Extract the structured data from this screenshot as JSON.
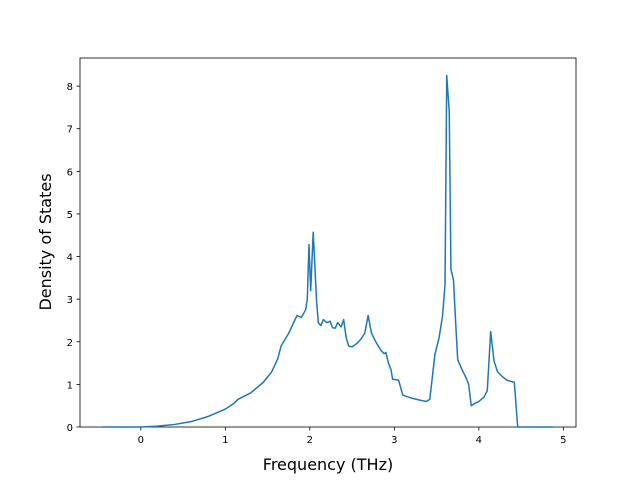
{
  "chart_data": {
    "type": "line",
    "xlabel": "Frequency (THz)",
    "ylabel": "Density of States",
    "xlim": [
      -0.72,
      5.15
    ],
    "ylim": [
      0,
      8.66
    ],
    "xticks": [
      0,
      1,
      2,
      3,
      4,
      5
    ],
    "yticks": [
      0,
      1,
      2,
      3,
      4,
      5,
      6,
      7,
      8
    ],
    "grid": false,
    "series": [
      {
        "name": "DOS",
        "color": "#1f77b4",
        "x": [
          -0.45,
          0,
          0.2,
          0.4,
          0.6,
          0.8,
          1.0,
          1.1,
          1.15,
          1.3,
          1.45,
          1.55,
          1.62,
          1.66,
          1.75,
          1.82,
          1.85,
          1.9,
          1.95,
          1.97,
          1.99,
          2.01,
          2.04,
          2.08,
          2.1,
          2.13,
          2.16,
          2.2,
          2.24,
          2.27,
          2.3,
          2.33,
          2.37,
          2.4,
          2.43,
          2.46,
          2.5,
          2.55,
          2.6,
          2.65,
          2.69,
          2.73,
          2.78,
          2.84,
          2.88,
          2.9,
          2.93,
          2.96,
          2.98,
          3.05,
          3.1,
          3.2,
          3.3,
          3.38,
          3.42,
          3.48,
          3.53,
          3.57,
          3.6,
          3.62,
          3.65,
          3.67,
          3.7,
          3.73,
          3.75,
          3.8,
          3.85,
          3.88,
          3.91,
          3.95,
          4.0,
          4.06,
          4.1,
          4.14,
          4.18,
          4.22,
          4.28,
          4.33,
          4.38,
          4.42,
          4.46,
          4.88
        ],
        "values": [
          0,
          0,
          0.02,
          0.06,
          0.13,
          0.25,
          0.42,
          0.55,
          0.65,
          0.8,
          1.05,
          1.3,
          1.6,
          1.9,
          2.2,
          2.5,
          2.62,
          2.57,
          2.75,
          3.0,
          4.28,
          3.2,
          4.57,
          2.95,
          2.45,
          2.38,
          2.52,
          2.45,
          2.48,
          2.33,
          2.32,
          2.45,
          2.35,
          2.52,
          2.1,
          1.9,
          1.88,
          1.95,
          2.05,
          2.2,
          2.62,
          2.2,
          2.0,
          1.8,
          1.72,
          1.75,
          1.5,
          1.35,
          1.12,
          1.1,
          0.75,
          0.68,
          0.63,
          0.6,
          0.65,
          1.7,
          2.1,
          2.6,
          3.35,
          8.25,
          7.4,
          3.7,
          3.45,
          2.3,
          1.58,
          1.35,
          1.15,
          1.0,
          0.5,
          0.55,
          0.6,
          0.7,
          0.85,
          2.24,
          1.55,
          1.3,
          1.18,
          1.1,
          1.07,
          1.05,
          0,
          0
        ]
      }
    ]
  }
}
